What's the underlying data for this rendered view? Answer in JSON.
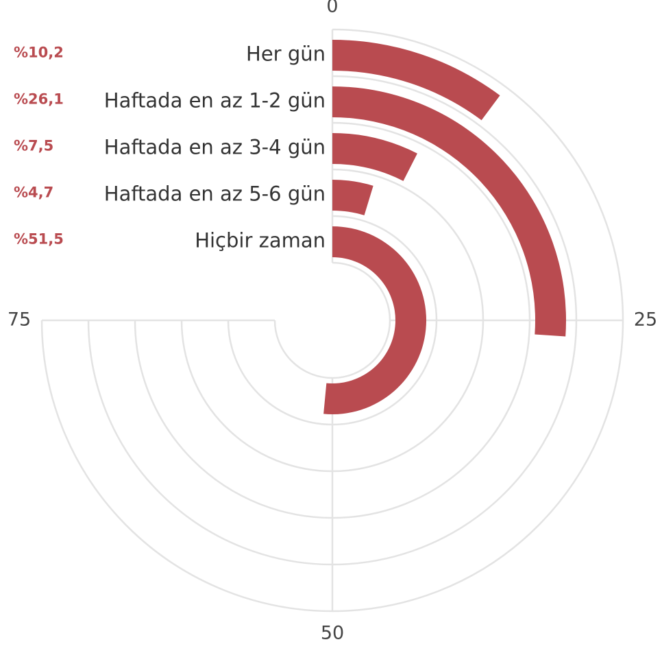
{
  "chart_data": {
    "type": "radial-bar",
    "categories": [
      "Her gün",
      "Haftada en az 1-2 gün",
      "Haftada en az 3-4 gün",
      "Haftada en az 5-6 gün",
      "Hiçbir zaman"
    ],
    "values": [
      10.2,
      26.1,
      7.5,
      4.7,
      51.5
    ],
    "value_labels": [
      "%10,2",
      "%26,1",
      "%7,5",
      "%4,7",
      "%51,5"
    ],
    "color": "#b94b50",
    "ylim": [
      0,
      100
    ],
    "yticks": [
      0,
      25,
      50,
      75
    ]
  }
}
